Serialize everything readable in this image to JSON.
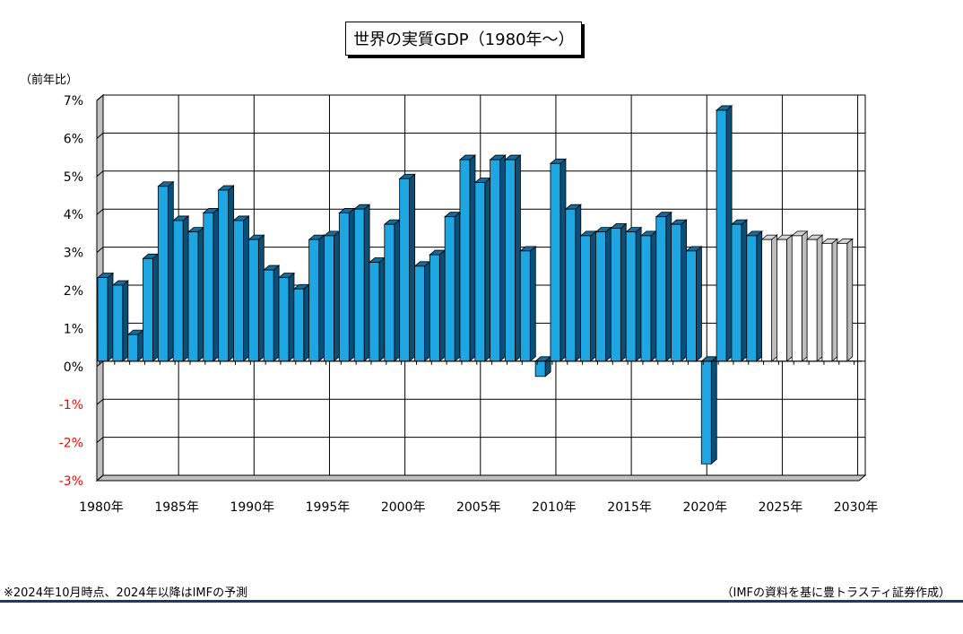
{
  "chart_data": {
    "type": "bar",
    "title": "世界の実質GDP（1980年～）",
    "ylabel": "（前年比）",
    "xlabel": "",
    "ylim": [
      -3,
      7
    ],
    "y_ticks": [
      "7%",
      "6%",
      "5%",
      "4%",
      "3%",
      "2%",
      "1%",
      "0%",
      "-1%",
      "-2%",
      "-3%"
    ],
    "x_ticks": [
      "1980年",
      "1985年",
      "1990年",
      "1995年",
      "2000年",
      "2005年",
      "2010年",
      "2015年",
      "2020年",
      "2025年",
      "2030年"
    ],
    "grid": true,
    "categories": [
      1980,
      1981,
      1982,
      1983,
      1984,
      1985,
      1986,
      1987,
      1988,
      1989,
      1990,
      1991,
      1992,
      1993,
      1994,
      1995,
      1996,
      1997,
      1998,
      1999,
      2000,
      2001,
      2002,
      2003,
      2004,
      2005,
      2006,
      2007,
      2008,
      2009,
      2010,
      2011,
      2012,
      2013,
      2014,
      2015,
      2016,
      2017,
      2018,
      2019,
      2020,
      2021,
      2022,
      2023,
      2024,
      2025,
      2026,
      2027,
      2028,
      2029
    ],
    "series": [
      {
        "values": [
          2.2,
          2.0,
          0.7,
          2.7,
          4.6,
          3.7,
          3.4,
          3.9,
          4.5,
          3.7,
          3.2,
          2.4,
          2.2,
          1.9,
          3.2,
          3.3,
          3.9,
          4.0,
          2.6,
          3.6,
          4.8,
          2.5,
          2.8,
          3.8,
          5.3,
          4.7,
          5.3,
          5.3,
          2.9,
          -0.4,
          5.2,
          4.0,
          3.3,
          3.4,
          3.5,
          3.4,
          3.3,
          3.8,
          3.6,
          2.9,
          -2.7,
          6.6,
          3.6,
          3.3,
          3.2,
          3.2,
          3.3,
          3.2,
          3.1,
          3.1
        ],
        "forecast_from": 2024
      }
    ],
    "colors": {
      "actual": "#1ea6e3",
      "actual_top": "#0f6fa0",
      "actual_side": "#0a4f78",
      "forecast": "#ffffff",
      "forecast_top": "#d4d4d4",
      "forecast_side": "#bdbdbd",
      "negative_tick": "#ff0000"
    }
  },
  "footnote": "※2024年10月時点、2024年以降はIMFの予測",
  "source": "（IMFの資料を基に豊トラスティ証券作成）"
}
